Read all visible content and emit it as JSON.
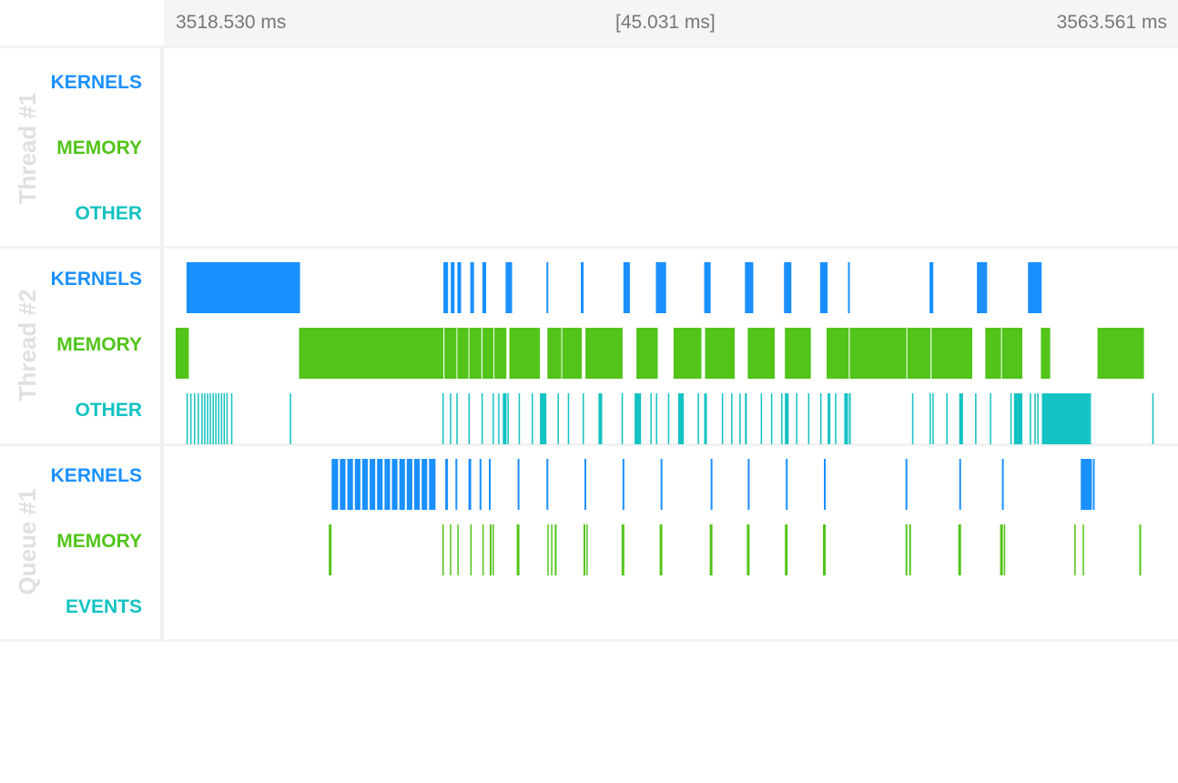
{
  "header": {
    "start_time": "3518.530 ms",
    "span": "[45.031 ms]",
    "end_time": "3563.561 ms"
  },
  "colors": {
    "kernels": "#1a90ff",
    "memory": "#52c41a",
    "other": "#13c2c2",
    "events": "#13c2c2",
    "group_label": "#e0e0e0"
  },
  "time_range_ms": [
    3518.53,
    3563.561
  ],
  "groups": [
    {
      "name": "Thread #1",
      "tracks": [
        {
          "label": "KERNELS",
          "kind": "kernels",
          "events": []
        },
        {
          "label": "MEMORY",
          "kind": "memory",
          "events": []
        },
        {
          "label": "OTHER",
          "kind": "other",
          "events": []
        }
      ]
    },
    {
      "name": "Thread #2",
      "tracks": [
        {
          "label": "KERNELS",
          "kind": "kernels",
          "events": [
            [
              3519.061,
              3524.213
            ],
            [
              3530.72,
              3530.93
            ],
            [
              3531.057,
              3531.226
            ],
            [
              3531.352,
              3531.521
            ],
            [
              3531.942,
              3532.111
            ],
            [
              3532.489,
              3532.658
            ],
            [
              3533.542,
              3533.837
            ],
            [
              3535.396,
              3535.48
            ],
            [
              3536.954,
              3537.081
            ],
            [
              3538.891,
              3539.186
            ],
            [
              3540.365,
              3540.828
            ],
            [
              3542.554,
              3542.849
            ],
            [
              3544.406,
              3544.785
            ],
            [
              3546.175,
              3546.511
            ],
            [
              3547.817,
              3548.154
            ],
            [
              3549.079,
              3549.163
            ],
            [
              3552.783,
              3552.952
            ],
            [
              3554.931,
              3555.394
            ],
            [
              3557.247,
              3557.868
            ]
          ]
        },
        {
          "label": "MEMORY",
          "kind": "memory",
          "events": [
            [
              3518.572,
              3519.166
            ],
            [
              3524.171,
              3530.72
            ],
            [
              3530.762,
              3531.31
            ],
            [
              3531.352,
              3531.857
            ],
            [
              3531.9,
              3532.447
            ],
            [
              3532.489,
              3532.995
            ],
            [
              3533.037,
              3533.584
            ],
            [
              3533.711,
              3535.101
            ],
            [
              3535.438,
              3536.07
            ],
            [
              3536.112,
              3536.996
            ],
            [
              3537.165,
              3538.849
            ],
            [
              3539.481,
              3540.449
            ],
            [
              3541.165,
              3542.428
            ],
            [
              3542.596,
              3543.943
            ],
            [
              3544.532,
              3545.753
            ],
            [
              3546.217,
              3547.396
            ],
            [
              3548.112,
              3549.121
            ],
            [
              3549.163,
              3551.732
            ],
            [
              3551.774,
              3552.825
            ],
            [
              3552.868,
              3554.72
            ],
            [
              3555.31,
              3556.026
            ],
            [
              3556.068,
              3556.994
            ],
            [
              3557.836,
              3558.257
            ],
            [
              3560.404,
              3562.511
            ]
          ]
        },
        {
          "label": "OTHER",
          "kind": "other",
          "events": [
            [
              3519.061,
              3519.103
            ],
            [
              3519.229,
              3519.271
            ],
            [
              3519.398,
              3519.44
            ],
            [
              3519.566,
              3519.608
            ],
            [
              3519.735,
              3519.777
            ],
            [
              3519.861,
              3519.903
            ],
            [
              3519.987,
              3520.029
            ],
            [
              3520.114,
              3520.156
            ],
            [
              3520.24,
              3520.282
            ],
            [
              3520.366,
              3520.408
            ],
            [
              3520.493,
              3520.535
            ],
            [
              3520.619,
              3520.661
            ],
            [
              3520.745,
              3520.787
            ],
            [
              3520.872,
              3520.914
            ],
            [
              3521.082,
              3521.124
            ],
            [
              3523.75,
              3523.792
            ],
            [
              3530.678,
              3530.72
            ],
            [
              3531.015,
              3531.057
            ],
            [
              3531.31,
              3531.352
            ],
            [
              3531.857,
              3531.899
            ],
            [
              3532.447,
              3532.489
            ],
            [
              3532.953,
              3532.995
            ],
            [
              3533.205,
              3533.247
            ],
            [
              3533.416,
              3533.584
            ],
            [
              3533.626,
              3533.668
            ],
            [
              3534.132,
              3534.174
            ],
            [
              3534.723,
              3534.765
            ],
            [
              3535.101,
              3535.396
            ],
            [
              3535.901,
              3535.943
            ],
            [
              3536.365,
              3536.407
            ],
            [
              3537.038,
              3537.08
            ],
            [
              3537.755,
              3537.923
            ],
            [
              3538.807,
              3538.849
            ],
            [
              3539.397,
              3539.692
            ],
            [
              3540.113,
              3540.155
            ],
            [
              3540.365,
              3540.407
            ],
            [
              3540.911,
              3540.953
            ],
            [
              3541.375,
              3541.627
            ],
            [
              3542.259,
              3542.301
            ],
            [
              3542.554,
              3542.68
            ],
            [
              3543.355,
              3543.397
            ],
            [
              3543.775,
              3543.817
            ],
            [
              3544.154,
              3544.196
            ],
            [
              3544.406,
              3544.491
            ],
            [
              3545.121,
              3545.163
            ],
            [
              3545.584,
              3545.626
            ],
            [
              3546.049,
              3546.091
            ],
            [
              3546.217,
              3546.385
            ],
            [
              3546.722,
              3546.764
            ],
            [
              3547.269,
              3547.311
            ],
            [
              3547.817,
              3547.859
            ],
            [
              3548.154,
              3548.28
            ],
            [
              3548.491,
              3548.533
            ],
            [
              3548.912,
              3549.08
            ],
            [
              3549.121,
              3549.205
            ],
            [
              3551.985,
              3552.027
            ],
            [
              3552.783,
              3552.825
            ],
            [
              3552.91,
              3552.952
            ],
            [
              3553.542,
              3553.584
            ],
            [
              3554.131,
              3554.299
            ],
            [
              3554.847,
              3554.889
            ],
            [
              3555.52,
              3555.562
            ],
            [
              3556.447,
              3556.489
            ],
            [
              3556.614,
              3556.993
            ],
            [
              3557.33,
              3557.372
            ],
            [
              3557.541,
              3557.583
            ],
            [
              3557.668,
              3557.71
            ],
            [
              3557.879,
              3560.025
            ],
            [
              3560.025,
              3560.109
            ],
            [
              3562.889,
              3562.931
            ]
          ]
        }
      ]
    },
    {
      "name": "Queue #1",
      "tracks": [
        {
          "label": "KERNELS",
          "kind": "kernels",
          "events": [
            [
              3525.647,
              3525.942
            ],
            [
              3526.026,
              3526.279
            ],
            [
              3526.363,
              3526.616
            ],
            [
              3526.7,
              3526.953
            ],
            [
              3527.037,
              3527.29
            ],
            [
              3527.374,
              3527.627
            ],
            [
              3527.711,
              3527.964
            ],
            [
              3528.047,
              3528.3
            ],
            [
              3528.384,
              3528.637
            ],
            [
              3528.721,
              3528.974
            ],
            [
              3529.058,
              3529.311
            ],
            [
              3529.395,
              3529.648
            ],
            [
              3529.732,
              3529.985
            ],
            [
              3530.069,
              3530.364
            ],
            [
              3530.804,
              3530.93
            ],
            [
              3531.268,
              3531.352
            ],
            [
              3531.857,
              3531.983
            ],
            [
              3532.362,
              3532.446
            ],
            [
              3532.784,
              3532.868
            ],
            [
              3534.09,
              3534.174
            ],
            [
              3535.396,
              3535.48
            ],
            [
              3537.122,
              3537.206
            ],
            [
              3538.849,
              3538.933
            ],
            [
              3540.576,
              3540.66
            ],
            [
              3542.848,
              3542.932
            ],
            [
              3544.532,
              3544.616
            ],
            [
              3546.259,
              3546.343
            ],
            [
              3547.986,
              3548.07
            ],
            [
              3551.69,
              3551.774
            ],
            [
              3554.131,
              3554.215
            ],
            [
              3556.068,
              3556.152
            ],
            [
              3559.646,
              3560.151
            ],
            [
              3560.193,
              3560.277
            ]
          ]
        },
        {
          "label": "MEMORY",
          "kind": "memory",
          "events": [
            [
              3525.521,
              3525.647
            ],
            [
              3530.678,
              3530.72
            ],
            [
              3531.015,
              3531.057
            ],
            [
              3531.352,
              3531.394
            ],
            [
              3531.942,
              3531.984
            ],
            [
              3532.488,
              3532.53
            ],
            [
              3532.826,
              3532.91
            ],
            [
              3532.953,
              3532.995
            ],
            [
              3534.048,
              3534.174
            ],
            [
              3535.438,
              3535.48
            ],
            [
              3535.606,
              3535.648
            ],
            [
              3535.775,
              3535.859
            ],
            [
              3537.08,
              3537.164
            ],
            [
              3537.207,
              3537.249
            ],
            [
              3538.807,
              3538.933
            ],
            [
              3540.534,
              3540.66
            ],
            [
              3542.806,
              3542.932
            ],
            [
              3544.49,
              3544.616
            ],
            [
              3546.217,
              3546.343
            ],
            [
              3547.944,
              3548.07
            ],
            [
              3551.69,
              3551.774
            ],
            [
              3551.858,
              3551.942
            ],
            [
              3554.089,
              3554.215
            ],
            [
              3555.984,
              3556.11
            ],
            [
              3556.152,
              3556.194
            ],
            [
              3559.351,
              3559.393
            ],
            [
              3559.73,
              3559.772
            ],
            [
              3562.3,
              3562.384
            ]
          ]
        },
        {
          "label": "EVENTS",
          "kind": "events",
          "events": []
        }
      ]
    }
  ]
}
